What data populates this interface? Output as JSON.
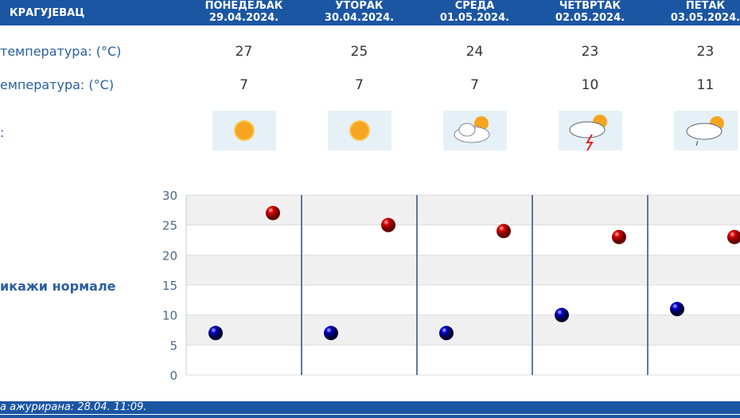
{
  "header": {
    "city": "КРАГУЈЕВАЦ"
  },
  "days": [
    {
      "name": "ПОНЕДЕЉАК",
      "date": "29.04.2024.",
      "max": "27",
      "min": "7",
      "icon": "sunny-icon"
    },
    {
      "name": "УТОРАК",
      "date": "30.04.2024.",
      "max": "25",
      "min": "7",
      "icon": "sunny-icon"
    },
    {
      "name": "СРЕДА",
      "date": "01.05.2024.",
      "max": "24",
      "min": "7",
      "icon": "partly-cloudy-icon"
    },
    {
      "name": "ЧЕТВРТАК",
      "date": "02.05.2024.",
      "max": "23",
      "min": "10",
      "icon": "thunderstorm-icon"
    },
    {
      "name": "ПЕТАК",
      "date": "03.05.2024.",
      "max": "23",
      "min": "11",
      "icon": "rain-showers-icon"
    }
  ],
  "labels": {
    "max": "температура: (°C)",
    "min": "емпература: (°C)",
    "weather": ":",
    "normals": "икажи нормале"
  },
  "footer": {
    "updated": "а ажурирана:  28.04. 11:09."
  },
  "chart_data": {
    "type": "scatter",
    "categories": [
      "29.04.2024.",
      "30.04.2024.",
      "01.05.2024.",
      "02.05.2024.",
      "03.05.2024."
    ],
    "series": [
      {
        "values": [
          27,
          25,
          24,
          23,
          23
        ],
        "color": "#cc0000"
      },
      {
        "values": [
          7,
          7,
          7,
          10,
          11
        ],
        "color": "#0000cc"
      }
    ],
    "ylim": [
      0,
      30
    ],
    "yticks": [
      "0",
      "5",
      "10",
      "15",
      "20",
      "25",
      "30"
    ],
    "grid": true
  }
}
